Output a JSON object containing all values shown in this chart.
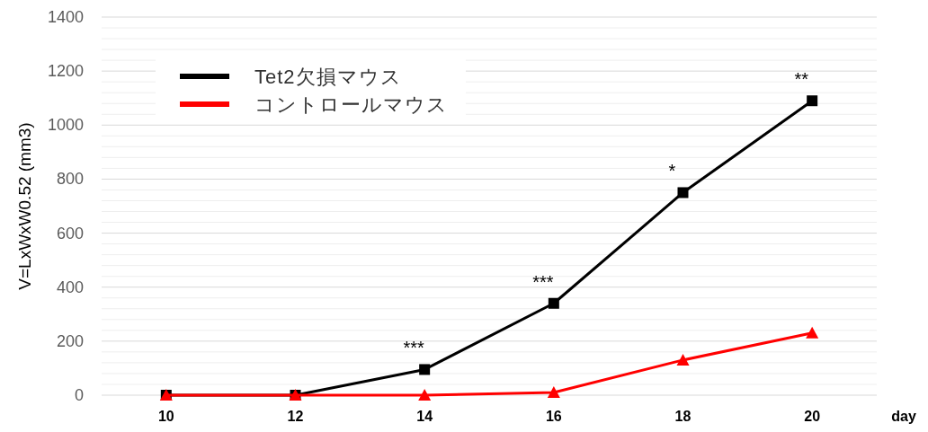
{
  "chart_data": {
    "type": "line",
    "xlabel": "day",
    "ylabel": "V=LxWxW0.52 (mm3)",
    "categories": [
      "10",
      "12",
      "14",
      "16",
      "18",
      "20"
    ],
    "series": [
      {
        "name": "Tet2欠損マウス",
        "color": "#000000",
        "marker": "square",
        "values": [
          0,
          0,
          95,
          340,
          750,
          1090
        ]
      },
      {
        "name": "コントロールマウス",
        "color": "#ff0000",
        "marker": "triangle",
        "values": [
          0,
          0,
          0,
          10,
          130,
          230
        ]
      }
    ],
    "ylim": [
      0,
      1400
    ],
    "yticks": [
      0,
      {
        "value": 40,
        "label": null
      },
      {
        "value": 80,
        "label": null
      },
      {
        "value": 120,
        "label": null
      },
      {
        "value": 160,
        "label": null
      },
      200,
      {
        "value": 240,
        "label": null
      },
      {
        "value": 280,
        "label": null
      },
      {
        "value": 320,
        "label": null
      },
      {
        "value": 360,
        "label": null
      },
      400,
      {
        "value": 440,
        "label": null
      },
      {
        "value": 480,
        "label": null
      },
      {
        "value": 520,
        "label": null
      },
      {
        "value": 560,
        "label": null
      },
      600,
      {
        "value": 640,
        "label": null
      },
      {
        "value": 680,
        "label": null
      },
      {
        "value": 720,
        "label": null
      },
      {
        "value": 760,
        "label": null
      },
      800,
      {
        "value": 840,
        "label": null
      },
      {
        "value": 880,
        "label": null
      },
      {
        "value": 920,
        "label": null
      },
      {
        "value": 960,
        "label": null
      },
      1000,
      {
        "value": 1040,
        "label": null
      },
      {
        "value": 1080,
        "label": null
      },
      {
        "value": 1120,
        "label": null
      },
      {
        "value": 1160,
        "label": null
      },
      1200,
      {
        "value": 1240,
        "label": null
      },
      {
        "value": 1280,
        "label": null
      },
      {
        "value": 1320,
        "label": null
      },
      {
        "value": 1360,
        "label": null
      },
      1400
    ],
    "annotations": [
      {
        "text": "***",
        "x": "14",
        "y": 95
      },
      {
        "text": "***",
        "x": "16",
        "y": 340
      },
      {
        "text": "*",
        "x": "18",
        "y": 750
      },
      {
        "text": "**",
        "x": "20",
        "y": 1090
      }
    ],
    "grid": "y",
    "legend": "top left",
    "line_style": "solid"
  }
}
